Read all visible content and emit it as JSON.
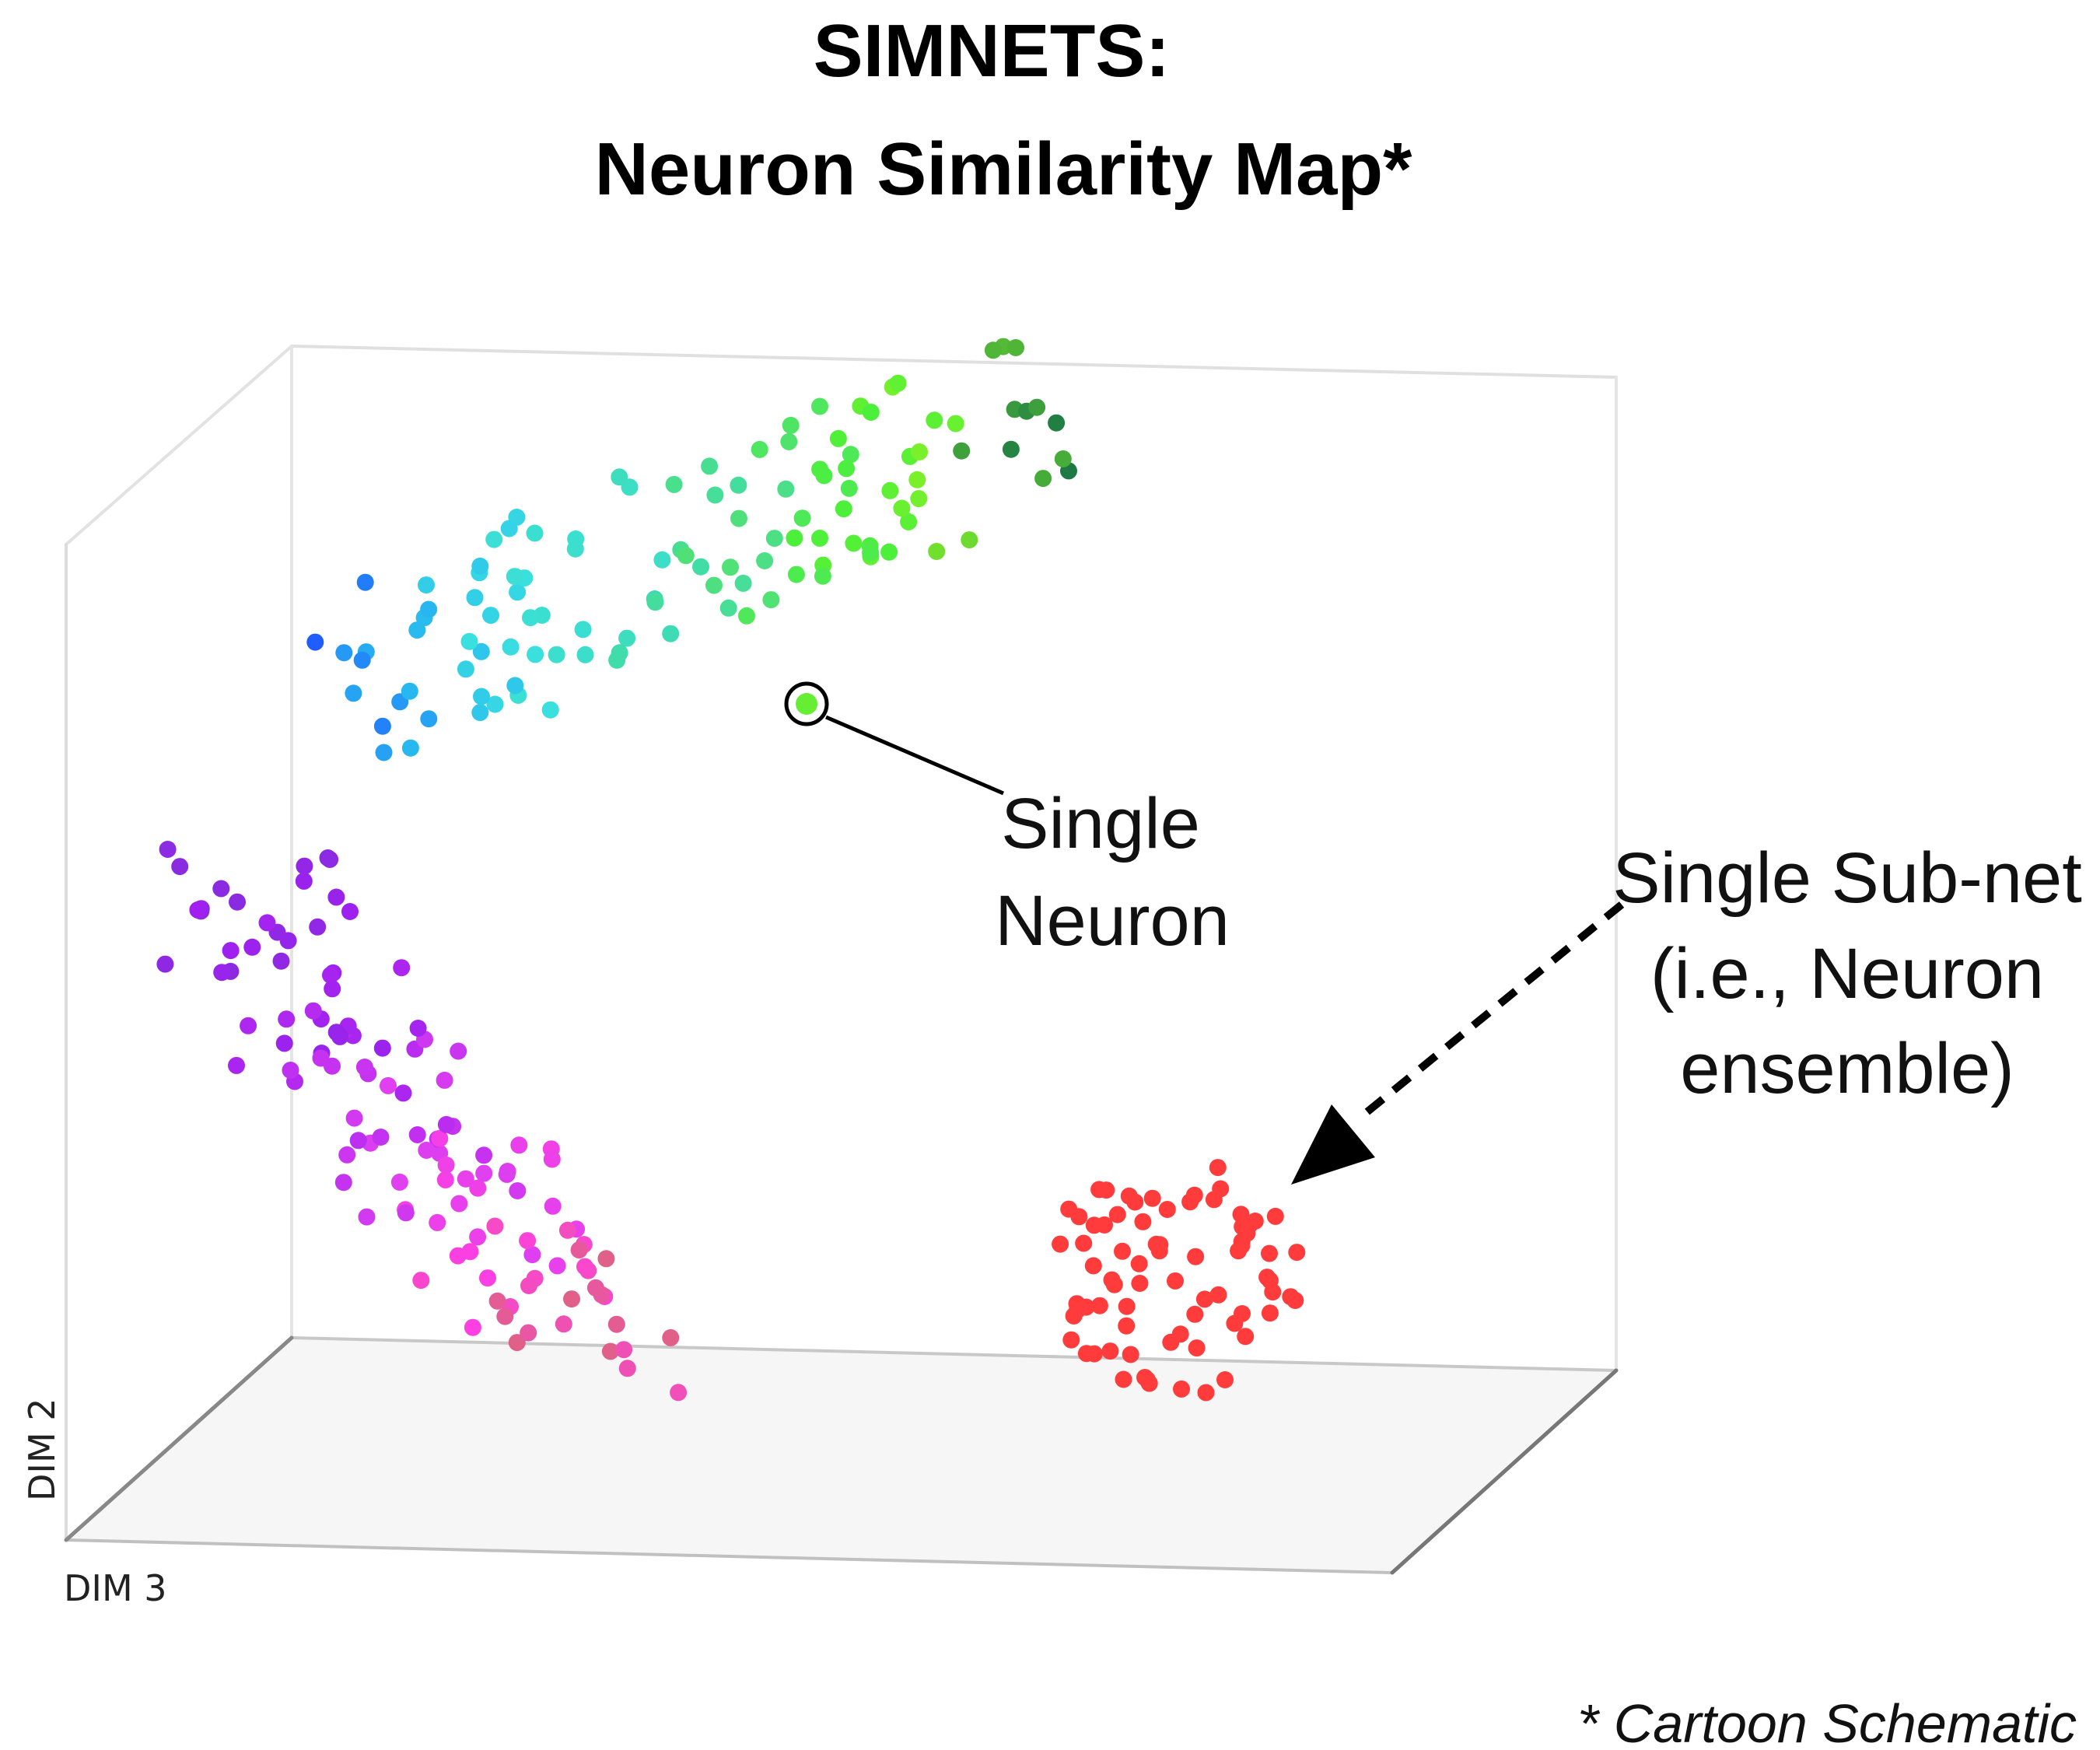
{
  "title": {
    "line1": "SIMNETS:",
    "line2": "Neuron Similarity Map*"
  },
  "annotations": {
    "single_neuron": [
      "Single",
      "Neuron"
    ],
    "single_subnet": [
      "Single Sub-net",
      "(i.e., Neuron",
      "ensemble)"
    ]
  },
  "axes": {
    "dim2": "DIM 2",
    "dim3": "DIM 3"
  },
  "footnote": "* Cartoon Schematic",
  "colors": {
    "cluster_upper": [
      "#1f5bff",
      "#28b8f0",
      "#3ae0e0",
      "#3edcb0",
      "#50e07a",
      "#4cf03a",
      "#7ef02a",
      "#1e7a44"
    ],
    "cluster_lower": [
      "#8a2be2",
      "#a020f0",
      "#c030f0",
      "#e040f0",
      "#ff40e0",
      "#e0608a"
    ],
    "cluster_right": "#ff3b3b"
  }
}
